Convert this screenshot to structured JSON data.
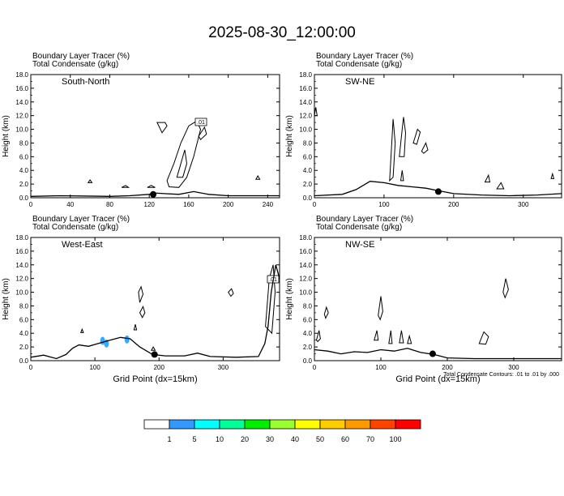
{
  "title": "2025-08-30_12:00:00",
  "footnote": "Total Condensate Contours: .01 to .01 by .000",
  "chart_data": [
    {
      "type": "line",
      "panel_label": "South-North",
      "header": [
        "Boundary Layer Tracer   (%)",
        "Total Condensate   (g/kg)"
      ],
      "ylabel": "Height (km)",
      "xlabel": "",
      "xlim": [
        0,
        252
      ],
      "ylim": [
        0,
        18
      ],
      "xticks": [
        0,
        40,
        80,
        120,
        160,
        200,
        240
      ],
      "yticks": [
        0,
        2,
        4,
        6,
        8,
        10,
        12,
        14,
        16,
        18
      ],
      "contour_label": ".01",
      "marker": {
        "x": 124,
        "y": 0.5
      },
      "terrain": [
        [
          0,
          0.2
        ],
        [
          30,
          0.3
        ],
        [
          80,
          0.2
        ],
        [
          100,
          0.3
        ],
        [
          120,
          0.5
        ],
        [
          125,
          0.7
        ],
        [
          135,
          0.6
        ],
        [
          150,
          0.5
        ],
        [
          165,
          0.9
        ],
        [
          180,
          0.5
        ],
        [
          200,
          0.3
        ],
        [
          252,
          0.3
        ]
      ],
      "contours": [
        [
          [
            138,
            2.5
          ],
          [
            145,
            5
          ],
          [
            152,
            8
          ],
          [
            160,
            10.5
          ],
          [
            168,
            11.2
          ],
          [
            172,
            10
          ],
          [
            165,
            6
          ],
          [
            158,
            3
          ],
          [
            150,
            1.5
          ],
          [
            140,
            1.6
          ],
          [
            138,
            2.5
          ]
        ],
        [
          [
            148,
            3
          ],
          [
            152,
            5
          ],
          [
            156,
            7
          ],
          [
            158,
            5
          ],
          [
            154,
            3
          ],
          [
            148,
            3
          ]
        ],
        [
          [
            128,
            11
          ],
          [
            133,
            9.5
          ],
          [
            138,
            10.5
          ],
          [
            136,
            11
          ],
          [
            128,
            11
          ]
        ],
        [
          [
            170,
            9
          ],
          [
            176,
            10.3
          ],
          [
            178,
            9.3
          ],
          [
            172,
            8.5
          ],
          [
            170,
            9
          ]
        ],
        [
          [
            58,
            2.2
          ],
          [
            60,
            2.6
          ],
          [
            62,
            2.2
          ],
          [
            58,
            2.2
          ]
        ],
        [
          [
            92,
            1.5
          ],
          [
            96,
            1.8
          ],
          [
            99,
            1.5
          ],
          [
            92,
            1.5
          ]
        ],
        [
          [
            118,
            1.5
          ],
          [
            122,
            1.8
          ],
          [
            126,
            1.5
          ],
          [
            118,
            1.5
          ]
        ],
        [
          [
            228,
            2.7
          ],
          [
            230,
            3.2
          ],
          [
            232,
            2.7
          ],
          [
            228,
            2.7
          ]
        ]
      ]
    },
    {
      "type": "line",
      "panel_label": "SW-NE",
      "header": [
        "Boundary Layer Tracer   (%)",
        "Total Condensate   (g/kg)"
      ],
      "ylabel": "Height (km)",
      "xlabel": "",
      "xlim": [
        0,
        355
      ],
      "ylim": [
        0,
        18
      ],
      "xticks": [
        0,
        100,
        200,
        300
      ],
      "yticks": [
        0,
        2,
        4,
        6,
        8,
        10,
        12,
        14,
        16,
        18
      ],
      "contour_label": "",
      "marker": {
        "x": 178,
        "y": 0.9
      },
      "terrain": [
        [
          0,
          0.3
        ],
        [
          40,
          0.5
        ],
        [
          60,
          1.2
        ],
        [
          80,
          2.4
        ],
        [
          100,
          2.2
        ],
        [
          120,
          1.8
        ],
        [
          140,
          1.6
        ],
        [
          160,
          1.4
        ],
        [
          180,
          1.0
        ],
        [
          200,
          0.6
        ],
        [
          240,
          0.4
        ],
        [
          280,
          0.3
        ],
        [
          320,
          0.4
        ],
        [
          355,
          0.6
        ]
      ],
      "contours": [
        [
          [
            108,
            2.5
          ],
          [
            110,
            6
          ],
          [
            113,
            11.5
          ],
          [
            116,
            8
          ],
          [
            113,
            3
          ],
          [
            108,
            2.5
          ]
        ],
        [
          [
            122,
            6
          ],
          [
            126,
            10
          ],
          [
            128,
            11.8
          ],
          [
            131,
            9.5
          ],
          [
            129,
            6
          ],
          [
            122,
            6
          ]
        ],
        [
          [
            124,
            2.5
          ],
          [
            126,
            4
          ],
          [
            128,
            2.5
          ],
          [
            124,
            2.5
          ]
        ],
        [
          [
            142,
            8
          ],
          [
            148,
            10
          ],
          [
            152,
            9.6
          ],
          [
            147,
            7.8
          ],
          [
            142,
            8
          ]
        ],
        [
          [
            154,
            6.8
          ],
          [
            160,
            8
          ],
          [
            163,
            7
          ],
          [
            157,
            6.5
          ],
          [
            154,
            6.8
          ]
        ],
        [
          [
            0,
            12
          ],
          [
            2,
            13.2
          ],
          [
            4,
            12
          ],
          [
            0,
            12
          ]
        ],
        [
          [
            245,
            2.3
          ],
          [
            250,
            3.3
          ],
          [
            252,
            2.3
          ],
          [
            245,
            2.3
          ]
        ],
        [
          [
            262,
            1.3
          ],
          [
            268,
            2.2
          ],
          [
            272,
            1.3
          ],
          [
            262,
            1.3
          ]
        ],
        [
          [
            340,
            2.8
          ],
          [
            342,
            3.5
          ],
          [
            344,
            2.8
          ],
          [
            340,
            2.8
          ]
        ]
      ]
    },
    {
      "type": "line",
      "panel_label": "West-East",
      "header": [
        "Boundary Layer Tracer   (%)",
        "Total Condensate   (g/kg)"
      ],
      "ylabel": "Height (km)",
      "xlabel": "Grid Point (dx=15km)",
      "xlim": [
        0,
        388
      ],
      "ylim": [
        0,
        18
      ],
      "xticks": [
        0,
        100,
        200,
        300
      ],
      "yticks": [
        0,
        2,
        4,
        6,
        8,
        10,
        12,
        14,
        16,
        18
      ],
      "contour_label": ".01",
      "marker": {
        "x": 193,
        "y": 0.9
      },
      "terrain": [
        [
          0,
          0.5
        ],
        [
          20,
          0.8
        ],
        [
          40,
          0.3
        ],
        [
          55,
          0.9
        ],
        [
          65,
          1.8
        ],
        [
          75,
          2.3
        ],
        [
          90,
          2.1
        ],
        [
          105,
          2.5
        ],
        [
          120,
          2.9
        ],
        [
          140,
          3.4
        ],
        [
          155,
          3.2
        ],
        [
          170,
          2.0
        ],
        [
          190,
          0.9
        ],
        [
          210,
          0.7
        ],
        [
          240,
          0.7
        ],
        [
          260,
          1.1
        ],
        [
          280,
          0.6
        ],
        [
          320,
          0.5
        ],
        [
          355,
          0.6
        ],
        [
          365,
          2.5
        ],
        [
          370,
          5
        ],
        [
          375,
          10
        ],
        [
          382,
          14
        ],
        [
          388,
          12
        ]
      ],
      "contours": [
        [
          [
            168,
            10
          ],
          [
            172,
            10.8
          ],
          [
            175,
            9.7
          ],
          [
            170,
            8.5
          ],
          [
            168,
            10
          ]
        ],
        [
          [
            170,
            7
          ],
          [
            175,
            7.9
          ],
          [
            178,
            7
          ],
          [
            174,
            6.3
          ],
          [
            170,
            7
          ]
        ],
        [
          [
            308,
            10
          ],
          [
            313,
            10.5
          ],
          [
            316,
            9.8
          ],
          [
            312,
            9.4
          ],
          [
            308,
            10
          ]
        ],
        [
          [
            366,
            5
          ],
          [
            372,
            12
          ],
          [
            378,
            14
          ],
          [
            381,
            10
          ],
          [
            376,
            4
          ],
          [
            366,
            5
          ]
        ],
        [
          [
            188,
            1.5
          ],
          [
            191,
            2
          ],
          [
            194,
            1.5
          ],
          [
            188,
            1.5
          ]
        ],
        [
          [
            78,
            4.1
          ],
          [
            80,
            4.6
          ],
          [
            82,
            4.1
          ],
          [
            78,
            4.1
          ]
        ],
        [
          [
            161,
            4.5
          ],
          [
            163,
            5.3
          ],
          [
            165,
            4.5
          ],
          [
            161,
            4.5
          ]
        ]
      ],
      "tracer_blobs": [
        [
          112,
          2.9
        ],
        [
          118,
          2.5
        ],
        [
          150,
          3.1
        ]
      ],
      "tracer_blob_color": "#33aaff"
    },
    {
      "type": "line",
      "panel_label": "NW-SE",
      "header": [
        "Boundary Layer Tracer   (%)",
        "Total Condensate   (g/kg)"
      ],
      "ylabel": "Height (km)",
      "xlabel": "Grid Point (dx=15km)",
      "xlim": [
        0,
        372
      ],
      "ylim": [
        0,
        18
      ],
      "xticks": [
        0,
        100,
        200,
        300
      ],
      "yticks": [
        0,
        2,
        4,
        6,
        8,
        10,
        12,
        14,
        16,
        18
      ],
      "contour_label": "",
      "marker": {
        "x": 178,
        "y": 1.0
      },
      "terrain": [
        [
          0,
          1.6
        ],
        [
          20,
          1.4
        ],
        [
          40,
          1.0
        ],
        [
          60,
          1.3
        ],
        [
          80,
          1.2
        ],
        [
          100,
          1.6
        ],
        [
          120,
          1.4
        ],
        [
          140,
          1.8
        ],
        [
          160,
          1.2
        ],
        [
          180,
          0.9
        ],
        [
          200,
          0.4
        ],
        [
          240,
          0.3
        ],
        [
          280,
          0.3
        ],
        [
          320,
          0.3
        ],
        [
          372,
          0.3
        ]
      ],
      "contours": [
        [
          [
            15,
            6.8
          ],
          [
            18,
            7.8
          ],
          [
            21,
            7
          ],
          [
            17,
            6.2
          ],
          [
            15,
            6.8
          ]
        ],
        [
          [
            3,
            3
          ],
          [
            7,
            4.4
          ],
          [
            9,
            3.2
          ],
          [
            5,
            2.8
          ],
          [
            3,
            3
          ]
        ],
        [
          [
            96,
            6.6
          ],
          [
            100,
            9.4
          ],
          [
            103,
            7.2
          ],
          [
            99,
            6
          ],
          [
            96,
            6.6
          ]
        ],
        [
          [
            90,
            3
          ],
          [
            94,
            4.4
          ],
          [
            96,
            3
          ],
          [
            90,
            3
          ]
        ],
        [
          [
            112,
            2.5
          ],
          [
            115,
            4.4
          ],
          [
            117,
            2.5
          ],
          [
            112,
            2.5
          ]
        ],
        [
          [
            128,
            2.6
          ],
          [
            131,
            4.4
          ],
          [
            134,
            2.6
          ],
          [
            128,
            2.6
          ]
        ],
        [
          [
            140,
            2.5
          ],
          [
            143,
            3.6
          ],
          [
            146,
            2.5
          ],
          [
            140,
            2.5
          ]
        ],
        [
          [
            248,
            2.5
          ],
          [
            255,
            4.2
          ],
          [
            262,
            3.5
          ],
          [
            258,
            2.4
          ],
          [
            248,
            2.5
          ]
        ],
        [
          [
            284,
            10
          ],
          [
            288,
            12
          ],
          [
            292,
            10.4
          ],
          [
            287,
            9.2
          ],
          [
            284,
            10
          ]
        ]
      ]
    }
  ],
  "colorbar": {
    "labels": [
      "1",
      "5",
      "10",
      "20",
      "30",
      "40",
      "50",
      "60",
      "70",
      "100"
    ],
    "colors": [
      "#ffffff",
      "#3399ff",
      "#00ffff",
      "#00ff99",
      "#00ee00",
      "#99ff33",
      "#ffff00",
      "#ffcc00",
      "#ff9900",
      "#ff4400",
      "#ff0000"
    ]
  }
}
